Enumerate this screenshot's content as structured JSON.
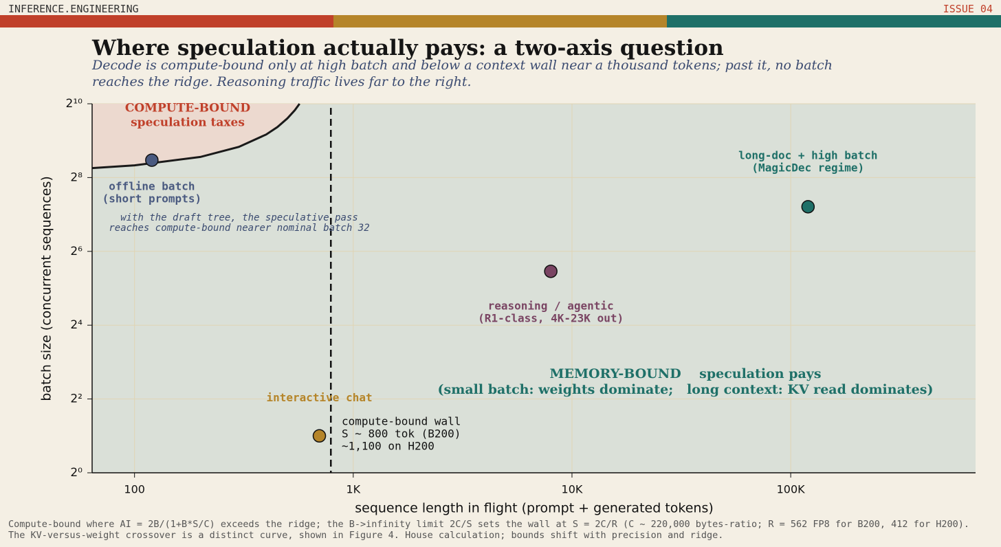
{
  "header": {
    "site": "INFERENCE.ENGINEERING",
    "issue": "ISSUE 04"
  },
  "chart_data": {
    "type": "scatter",
    "title": "Where speculation actually pays: a two-axis question",
    "subtitle": "Decode is compute-bound only at high batch and below a context wall near a thousand tokens; past it, no batch reaches the ridge. Reasoning traffic lives far to the right.",
    "x_label": "sequence length in flight  (prompt + generated tokens)",
    "y_label": "batch size (concurrent sequences)",
    "xscale": "log",
    "yscale": "log2",
    "grid": true,
    "xlim": [
      64,
      700000
    ],
    "xticks": [
      100,
      {
        "value": 1000,
        "label": "1K"
      },
      {
        "value": 10000,
        "label": "10K"
      },
      {
        "value": 100000,
        "label": "100K"
      }
    ],
    "ylim": [
      1,
      1024
    ],
    "yticks": [
      {
        "value": 1,
        "label": "2⁰"
      },
      {
        "value": 4,
        "label": "2²"
      },
      {
        "value": 16,
        "label": "2⁴"
      },
      {
        "value": 64,
        "label": "2⁶"
      },
      {
        "value": 256,
        "label": "2⁸"
      },
      {
        "value": 1024,
        "label": "2¹⁰"
      }
    ],
    "boundary": {
      "color": "#1a1a1a",
      "fill": "#ecd9cf",
      "x": [
        64,
        100,
        200,
        300,
        400,
        450,
        500,
        540,
        568
      ],
      "y": [
        306,
        322,
        377,
        456,
        575,
        661,
        778,
        906,
        1024
      ]
    },
    "wall": {
      "x": 790,
      "color": "#111111"
    },
    "points": [
      {
        "label": [
          "offline batch",
          "(short prompts)"
        ],
        "color": "#4a5a80",
        "x": 120,
        "y": 355
      },
      {
        "label": [
          "interactive chat"
        ],
        "color": "#b5852a",
        "x": 700,
        "y": 2
      },
      {
        "label": [
          "reasoning / agentic",
          "(R1-class, 4K-23K out)"
        ],
        "color": "#7a4563",
        "x": 8000,
        "y": 44
      },
      {
        "label": [
          "long-doc + high batch",
          "(MagicDec regime)"
        ],
        "color": "#1f7068",
        "x": 120000,
        "y": 148
      }
    ],
    "annotations": {
      "compute_region": [
        "COMPUTE-BOUND",
        "speculation taxes"
      ],
      "draft_tree": [
        "with the draft tree, the speculative pass",
        "reaches compute-bound nearer nominal batch 32"
      ],
      "wall_note": [
        "compute-bound wall",
        "S ~ 800 tok (B200)",
        "~1,100 on H200"
      ],
      "memory_region": [
        "MEMORY-BOUND    speculation pays",
        "(small batch: weights dominate;   long context: KV read dominates)"
      ]
    },
    "footnote": "Compute-bound where AI = 2B/(1+B*S/C) exceeds the ridge; the B->infinity limit 2C/S sets the wall at S = 2C/R (C ~ 220,000 bytes-ratio; R = 562 FP8 for B200, 412 for H200). The KV-versus-weight crossover is a distinct curve, shown in Figure 4. House calculation; bounds shift with precision and ridge."
  }
}
